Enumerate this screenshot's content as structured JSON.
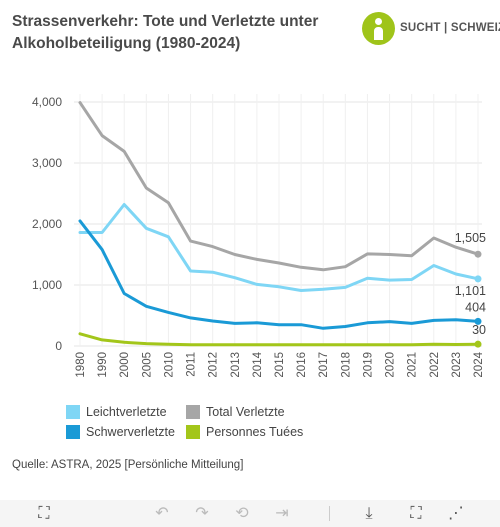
{
  "title": "Strassenverkehr: Tote und Verletzte unter Alkoholbeteiligung (1980-2024)",
  "logo": {
    "text": "SUCHT | SCHWEIZ",
    "color": "#9fc41a"
  },
  "source": "Quelle: ASTRA, 2025 [Persönliche Mitteilung]",
  "chart_data": {
    "type": "line",
    "title": "Strassenverkehr: Tote und Verletzte unter Alkoholbeteiligung (1980-2024)",
    "xlabel": "",
    "ylabel": "",
    "categories": [
      "1980",
      "1990",
      "2000",
      "2005",
      "2010",
      "2011",
      "2012",
      "2013",
      "2014",
      "2015",
      "2016",
      "2017",
      "2018",
      "2019",
      "2020",
      "2021",
      "2022",
      "2023",
      "2024"
    ],
    "ylim": [
      0,
      4000
    ],
    "yticks": [
      0,
      1000,
      2000,
      3000,
      4000
    ],
    "ytick_labels": [
      "0",
      "1,000",
      "2,000",
      "3,000",
      "4,000"
    ],
    "grid": true,
    "legend_position": "bottom",
    "series": [
      {
        "name": "Total Verletzte",
        "color": "#a6a6a6",
        "values": [
          3990,
          3450,
          3190,
          2590,
          2350,
          1720,
          1630,
          1500,
          1420,
          1360,
          1290,
          1250,
          1300,
          1510,
          1500,
          1480,
          1770,
          1620,
          1505
        ],
        "end_label": "1,505"
      },
      {
        "name": "Leichtverletzte",
        "color": "#7fd6f5",
        "values": [
          1860,
          1860,
          2320,
          1930,
          1790,
          1230,
          1210,
          1120,
          1010,
          970,
          910,
          930,
          960,
          1110,
          1080,
          1090,
          1320,
          1180,
          1101
        ],
        "end_label": "1,101"
      },
      {
        "name": "Schwerverletzte",
        "color": "#1a9ad6",
        "values": [
          2050,
          1580,
          860,
          650,
          550,
          460,
          410,
          370,
          380,
          350,
          350,
          290,
          320,
          380,
          400,
          370,
          420,
          430,
          404
        ],
        "end_label": "404"
      },
      {
        "name": "Personnes Tuées",
        "color": "#a3c61a",
        "values": [
          200,
          100,
          60,
          40,
          30,
          20,
          20,
          20,
          20,
          20,
          20,
          20,
          20,
          20,
          20,
          20,
          30,
          25,
          30
        ],
        "end_label": "30"
      }
    ]
  },
  "legend": [
    {
      "label": "Leichtverletzte",
      "color": "#7fd6f5"
    },
    {
      "label": "Total Verletzte",
      "color": "#a6a6a6"
    },
    {
      "label": "Schwerverletzte",
      "color": "#1a9ad6"
    },
    {
      "label": "Personnes Tuées",
      "color": "#a3c61a"
    }
  ],
  "toolbar": {
    "move": "⛶",
    "undo": "↶",
    "redo": "↷",
    "reset": "⟲",
    "forward": "⇥",
    "download": "⤓",
    "fullscreen": "⛶",
    "share": "⋰"
  }
}
